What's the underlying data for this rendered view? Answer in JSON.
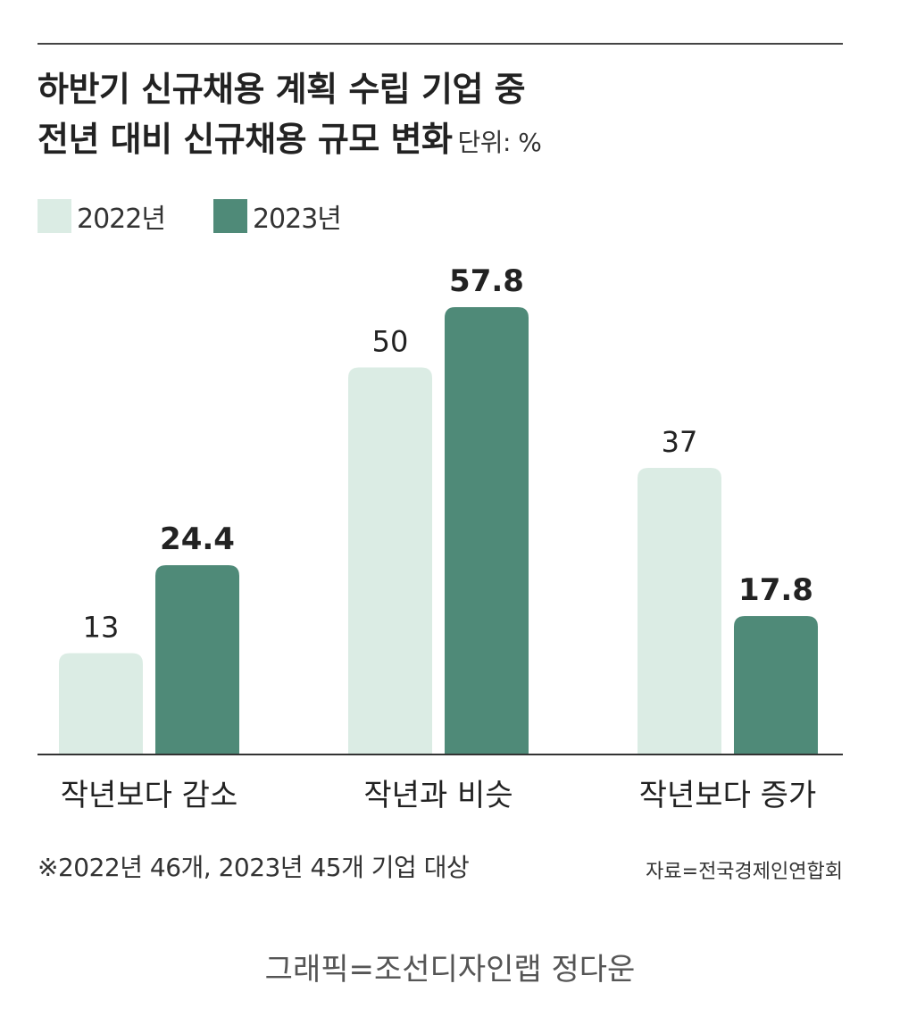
{
  "chart_data": {
    "type": "bar",
    "title_line1": "하반기 신규채용 계획 수립 기업 중",
    "title_line2": "전년 대비 신규채용 규모 변화",
    "unit": "단위: %",
    "categories": [
      "작년보다 감소",
      "작년과 비슷",
      "작년보다 증가"
    ],
    "series": [
      {
        "name": "2022년",
        "values": [
          13,
          50,
          37
        ],
        "color": "#dbece4"
      },
      {
        "name": "2023년",
        "values": [
          24.4,
          57.8,
          17.8
        ],
        "color": "#4f8a78"
      }
    ],
    "ylim": [
      0,
      60
    ],
    "legend": "top-left"
  },
  "footnote": "※2022년 46개, 2023년 45개 기업 대상",
  "source": "자료=전국경제인연합회",
  "credit": "그래픽=조선디자인랩 정다운"
}
